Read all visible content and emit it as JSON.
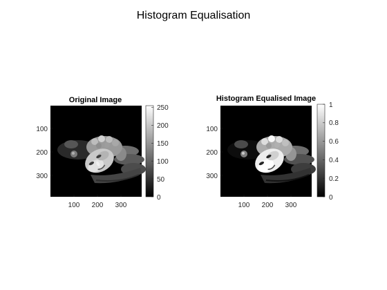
{
  "figure": {
    "suptitle": "Histogram Equalisation"
  },
  "panels": [
    {
      "title": "Original Image",
      "axis_ticks": {
        "x": [
          "100",
          "200",
          "300"
        ],
        "y": [
          "100",
          "200",
          "300"
        ]
      },
      "colorbar": {
        "range": [
          0,
          255
        ],
        "ticks": [
          "0",
          "50",
          "100",
          "150",
          "200",
          "250"
        ],
        "colormap": "gray"
      }
    },
    {
      "title": "Histogram Equalised Image",
      "axis_ticks": {
        "x": [
          "100",
          "200",
          "300"
        ],
        "y": [
          "100",
          "200",
          "300"
        ]
      },
      "colorbar": {
        "range": [
          0,
          1
        ],
        "ticks": [
          "0",
          "0.2",
          "0.4",
          "0.6",
          "0.8",
          "1"
        ],
        "colormap": "gray"
      }
    }
  ],
  "colors": {
    "background": "#ffffff",
    "image_background": "#000000",
    "axis": "#262626",
    "tick_text": "#262626",
    "title_text": "#000000"
  }
}
